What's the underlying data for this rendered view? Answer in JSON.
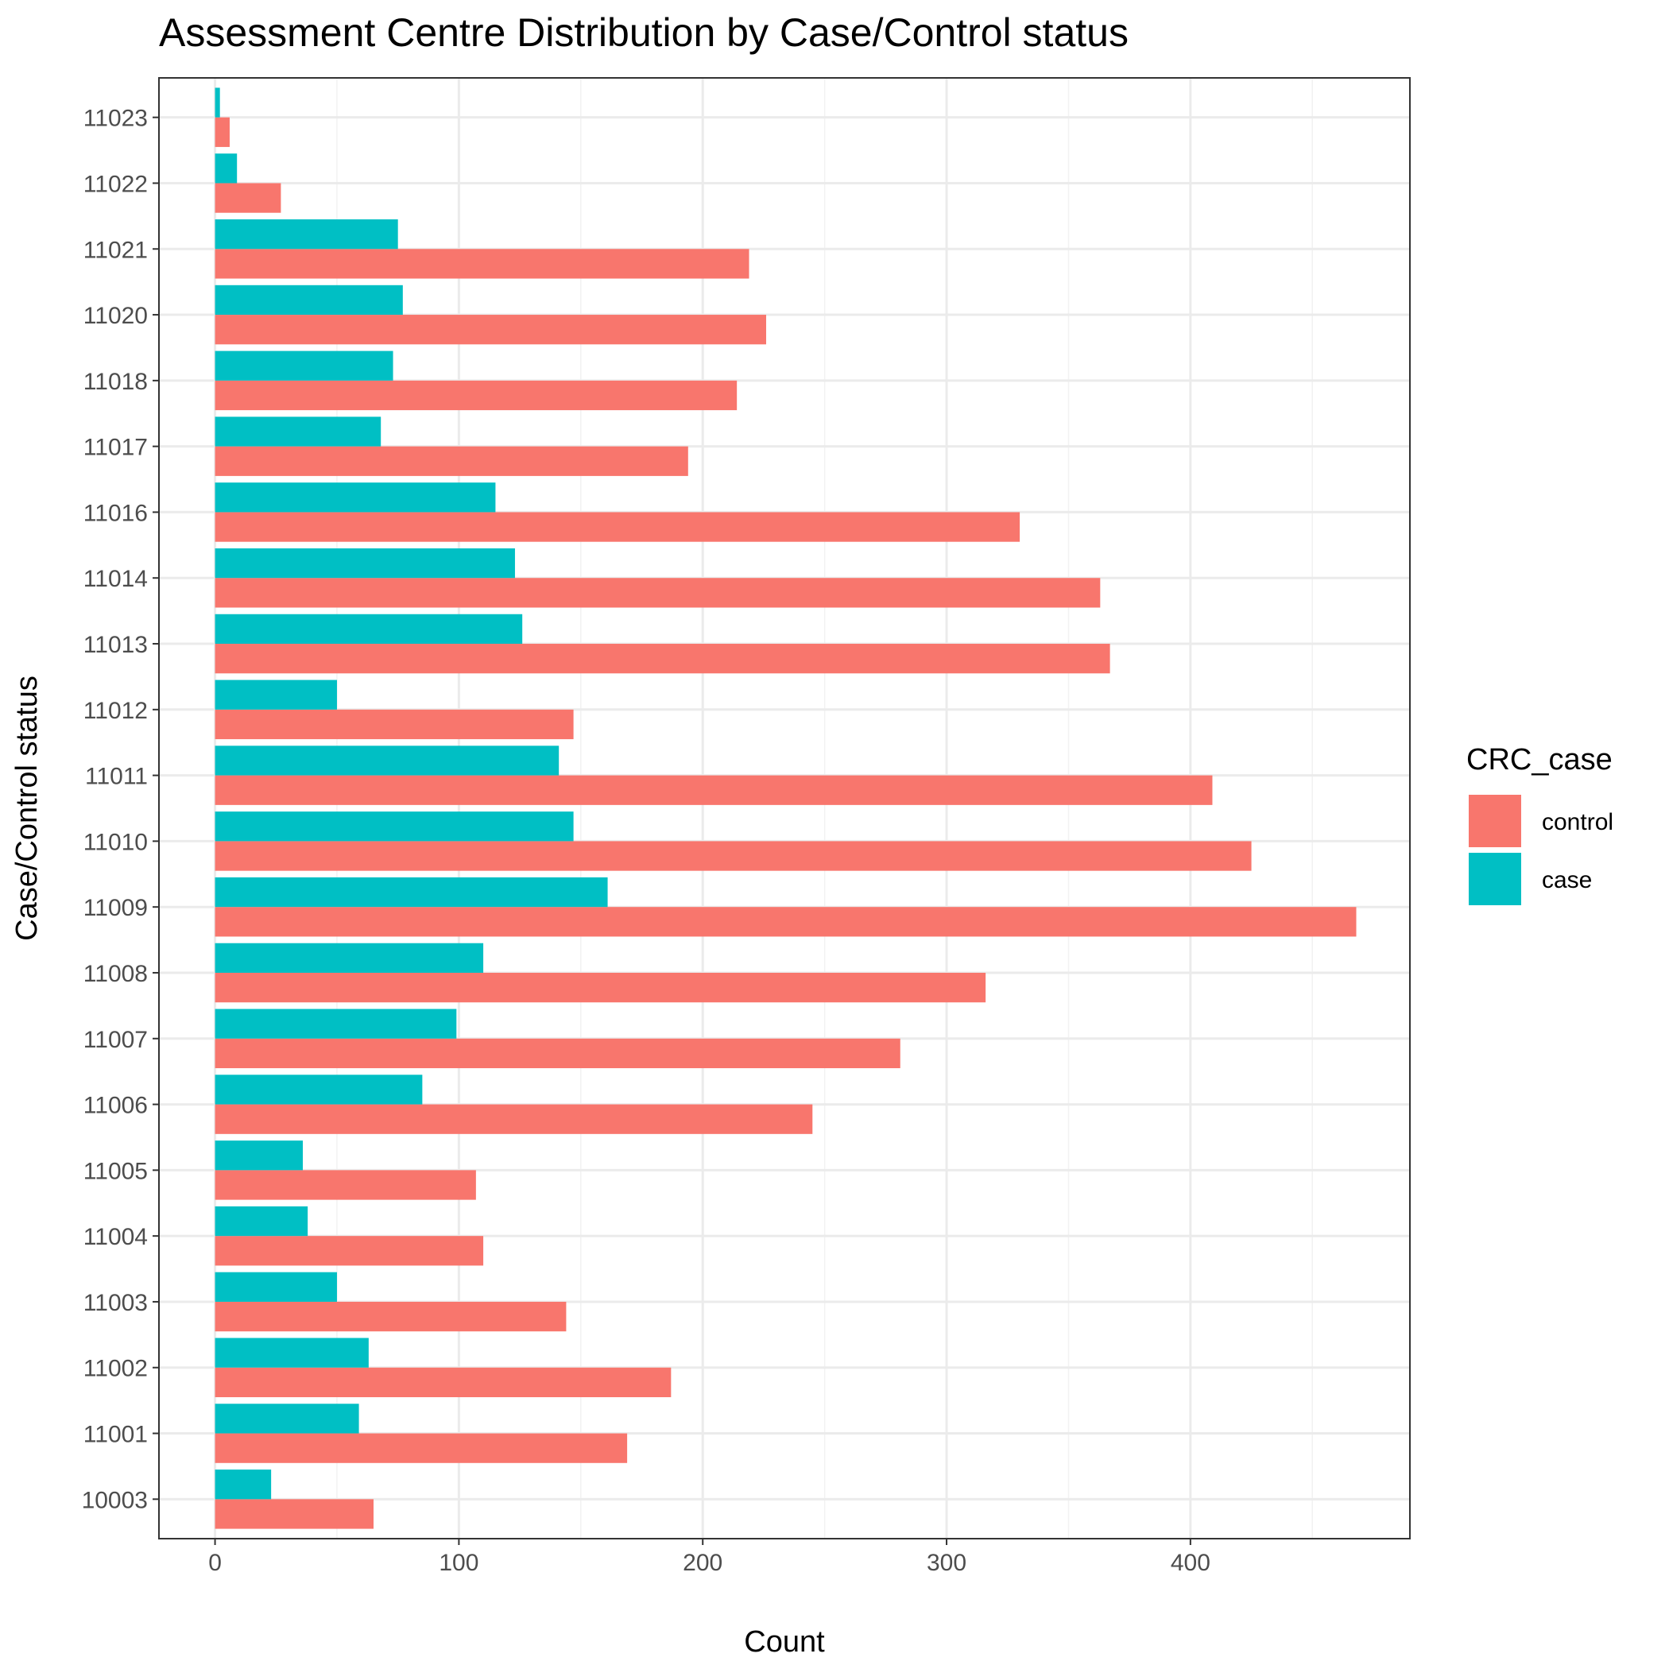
{
  "chart_data": {
    "type": "bar",
    "orientation": "horizontal",
    "title": "Assessment Centre Distribution by Case/Control status",
    "xlabel": "Count",
    "ylabel": "Case/Control status",
    "xlim": [
      -23,
      490
    ],
    "x_ticks": [
      0,
      100,
      200,
      300,
      400
    ],
    "grid": true,
    "legend": {
      "title": "CRC_case",
      "position": "right"
    },
    "categories": [
      "10003",
      "11001",
      "11002",
      "11003",
      "11004",
      "11005",
      "11006",
      "11007",
      "11008",
      "11009",
      "11010",
      "11011",
      "11012",
      "11013",
      "11014",
      "11016",
      "11017",
      "11018",
      "11020",
      "11021",
      "11022",
      "11023"
    ],
    "series": [
      {
        "name": "control",
        "color": "#F8766D",
        "values": [
          65,
          169,
          187,
          144,
          110,
          107,
          245,
          281,
          316,
          468,
          425,
          409,
          147,
          367,
          363,
          330,
          194,
          214,
          226,
          219,
          27,
          6
        ]
      },
      {
        "name": "case",
        "color": "#00BFC4",
        "values": [
          23,
          59,
          63,
          50,
          38,
          36,
          85,
          99,
          110,
          161,
          147,
          141,
          50,
          126,
          123,
          115,
          68,
          73,
          77,
          75,
          9,
          2
        ]
      }
    ]
  }
}
